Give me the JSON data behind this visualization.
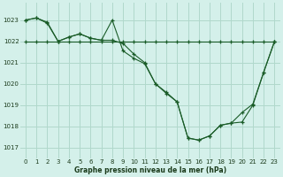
{
  "title": "Graphe pression niveau de la mer (hPa)",
  "bg_color": "#d4f0ea",
  "grid_color": "#b0d8cc",
  "line_color": "#1a5c28",
  "xlim": [
    -0.5,
    23.5
  ],
  "ylim": [
    1016.5,
    1023.8
  ],
  "yticks": [
    1017,
    1018,
    1019,
    1020,
    1021,
    1022,
    1023
  ],
  "xticks": [
    0,
    1,
    2,
    3,
    4,
    5,
    6,
    7,
    8,
    9,
    10,
    11,
    12,
    13,
    14,
    15,
    16,
    17,
    18,
    19,
    20,
    21,
    22,
    23
  ],
  "series1_x": [
    0,
    1,
    2,
    3,
    4,
    5,
    6,
    7,
    8,
    9,
    10,
    11,
    12,
    13,
    14,
    15,
    16,
    17,
    18,
    19,
    20,
    21,
    22,
    23
  ],
  "series1_y": [
    1023.0,
    1023.1,
    1022.9,
    1022.0,
    1022.2,
    1022.35,
    1022.15,
    1022.05,
    1022.05,
    1021.9,
    1021.4,
    1021.0,
    1020.0,
    1019.6,
    1019.15,
    1017.45,
    1017.35,
    1017.55,
    1018.05,
    1018.15,
    1018.2,
    1019.0,
    1020.55,
    1022.0
  ],
  "series2_x": [
    0,
    1,
    2,
    3,
    4,
    5,
    6,
    7,
    8,
    9,
    10,
    11,
    12,
    13,
    14,
    15,
    16,
    17,
    18,
    19,
    20,
    21,
    22,
    23
  ],
  "series2_y": [
    1023.0,
    1023.1,
    1022.85,
    1022.0,
    1022.2,
    1022.35,
    1022.15,
    1022.05,
    1023.0,
    1021.55,
    1021.2,
    1020.95,
    1020.0,
    1019.55,
    1019.15,
    1017.45,
    1017.35,
    1017.55,
    1018.05,
    1018.15,
    1018.65,
    1019.05,
    1020.55,
    1022.0
  ],
  "series3_x": [
    0,
    1,
    2,
    3,
    4,
    5,
    6,
    7,
    8,
    9,
    10,
    11,
    12,
    13,
    14,
    15,
    16,
    17,
    18,
    19,
    20,
    21,
    22,
    23
  ],
  "series3_y": [
    1022.0,
    1022.0,
    1022.0,
    1022.0,
    1022.0,
    1022.0,
    1022.0,
    1022.0,
    1022.0,
    1022.0,
    1022.0,
    1022.0,
    1022.0,
    1022.0,
    1022.0,
    1022.0,
    1022.0,
    1022.0,
    1022.0,
    1022.0,
    1022.0,
    1022.0,
    1022.0,
    1022.0
  ]
}
